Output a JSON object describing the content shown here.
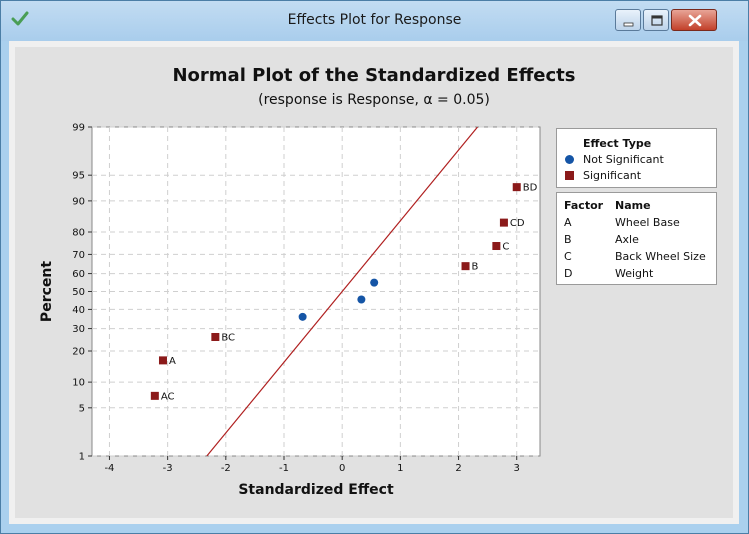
{
  "window": {
    "title": "Effects Plot for Response",
    "colors": {
      "frame": "#aad0ee",
      "close": "#c2402a"
    }
  },
  "chart": {
    "title": "Normal Plot of the Standardized Effects",
    "subtitle": "(response is Response, α = 0.05)"
  },
  "legend": {
    "effect_type_title": "Effect Type",
    "items": [
      {
        "label": "Not Significant",
        "symbol": "circle",
        "color": "#1555a6"
      },
      {
        "label": "Significant",
        "symbol": "square",
        "color": "#8b1a1a"
      }
    ],
    "factor_header": "Factor",
    "name_header": "Name",
    "factors": [
      {
        "factor": "A",
        "name": "Wheel Base"
      },
      {
        "factor": "B",
        "name": "Axle"
      },
      {
        "factor": "C",
        "name": "Back Wheel Size"
      },
      {
        "factor": "D",
        "name": "Weight"
      }
    ]
  },
  "chart_data": {
    "type": "scatter",
    "title": "Normal Plot of the Standardized Effects",
    "subtitle": "(response is Response, α = 0.05)",
    "xlabel": "Standardized Effect",
    "ylabel": "Percent",
    "xlim": [
      -4.3,
      3.4
    ],
    "ylim": [
      1,
      99
    ],
    "y_scale": "normal probability",
    "x_ticks": [
      -4,
      -3,
      -2,
      -1,
      0,
      1,
      2,
      3
    ],
    "y_ticks": [
      1,
      5,
      10,
      20,
      30,
      40,
      50,
      60,
      70,
      80,
      90,
      95,
      99
    ],
    "grid": true,
    "legend_position": "right",
    "reference_line": {
      "mean": 0,
      "sd": 1,
      "color": "#b02020"
    },
    "series": [
      {
        "name": "Not Significant",
        "color": "#1555a6",
        "marker": "circle",
        "points": [
          {
            "x": -0.68,
            "y": 36,
            "label": ""
          },
          {
            "x": 0.33,
            "y": 45.5,
            "label": ""
          },
          {
            "x": 0.55,
            "y": 55,
            "label": ""
          }
        ]
      },
      {
        "name": "Significant",
        "color": "#8b1a1a",
        "marker": "square",
        "points": [
          {
            "x": -3.22,
            "y": 7,
            "label": "AC"
          },
          {
            "x": -3.08,
            "y": 16.5,
            "label": "A"
          },
          {
            "x": -2.18,
            "y": 26,
            "label": "BC"
          },
          {
            "x": 2.12,
            "y": 64,
            "label": "B"
          },
          {
            "x": 2.65,
            "y": 74,
            "label": "C"
          },
          {
            "x": 2.78,
            "y": 83.5,
            "label": "CD"
          },
          {
            "x": 3.0,
            "y": 93,
            "label": "BD"
          }
        ]
      }
    ]
  }
}
